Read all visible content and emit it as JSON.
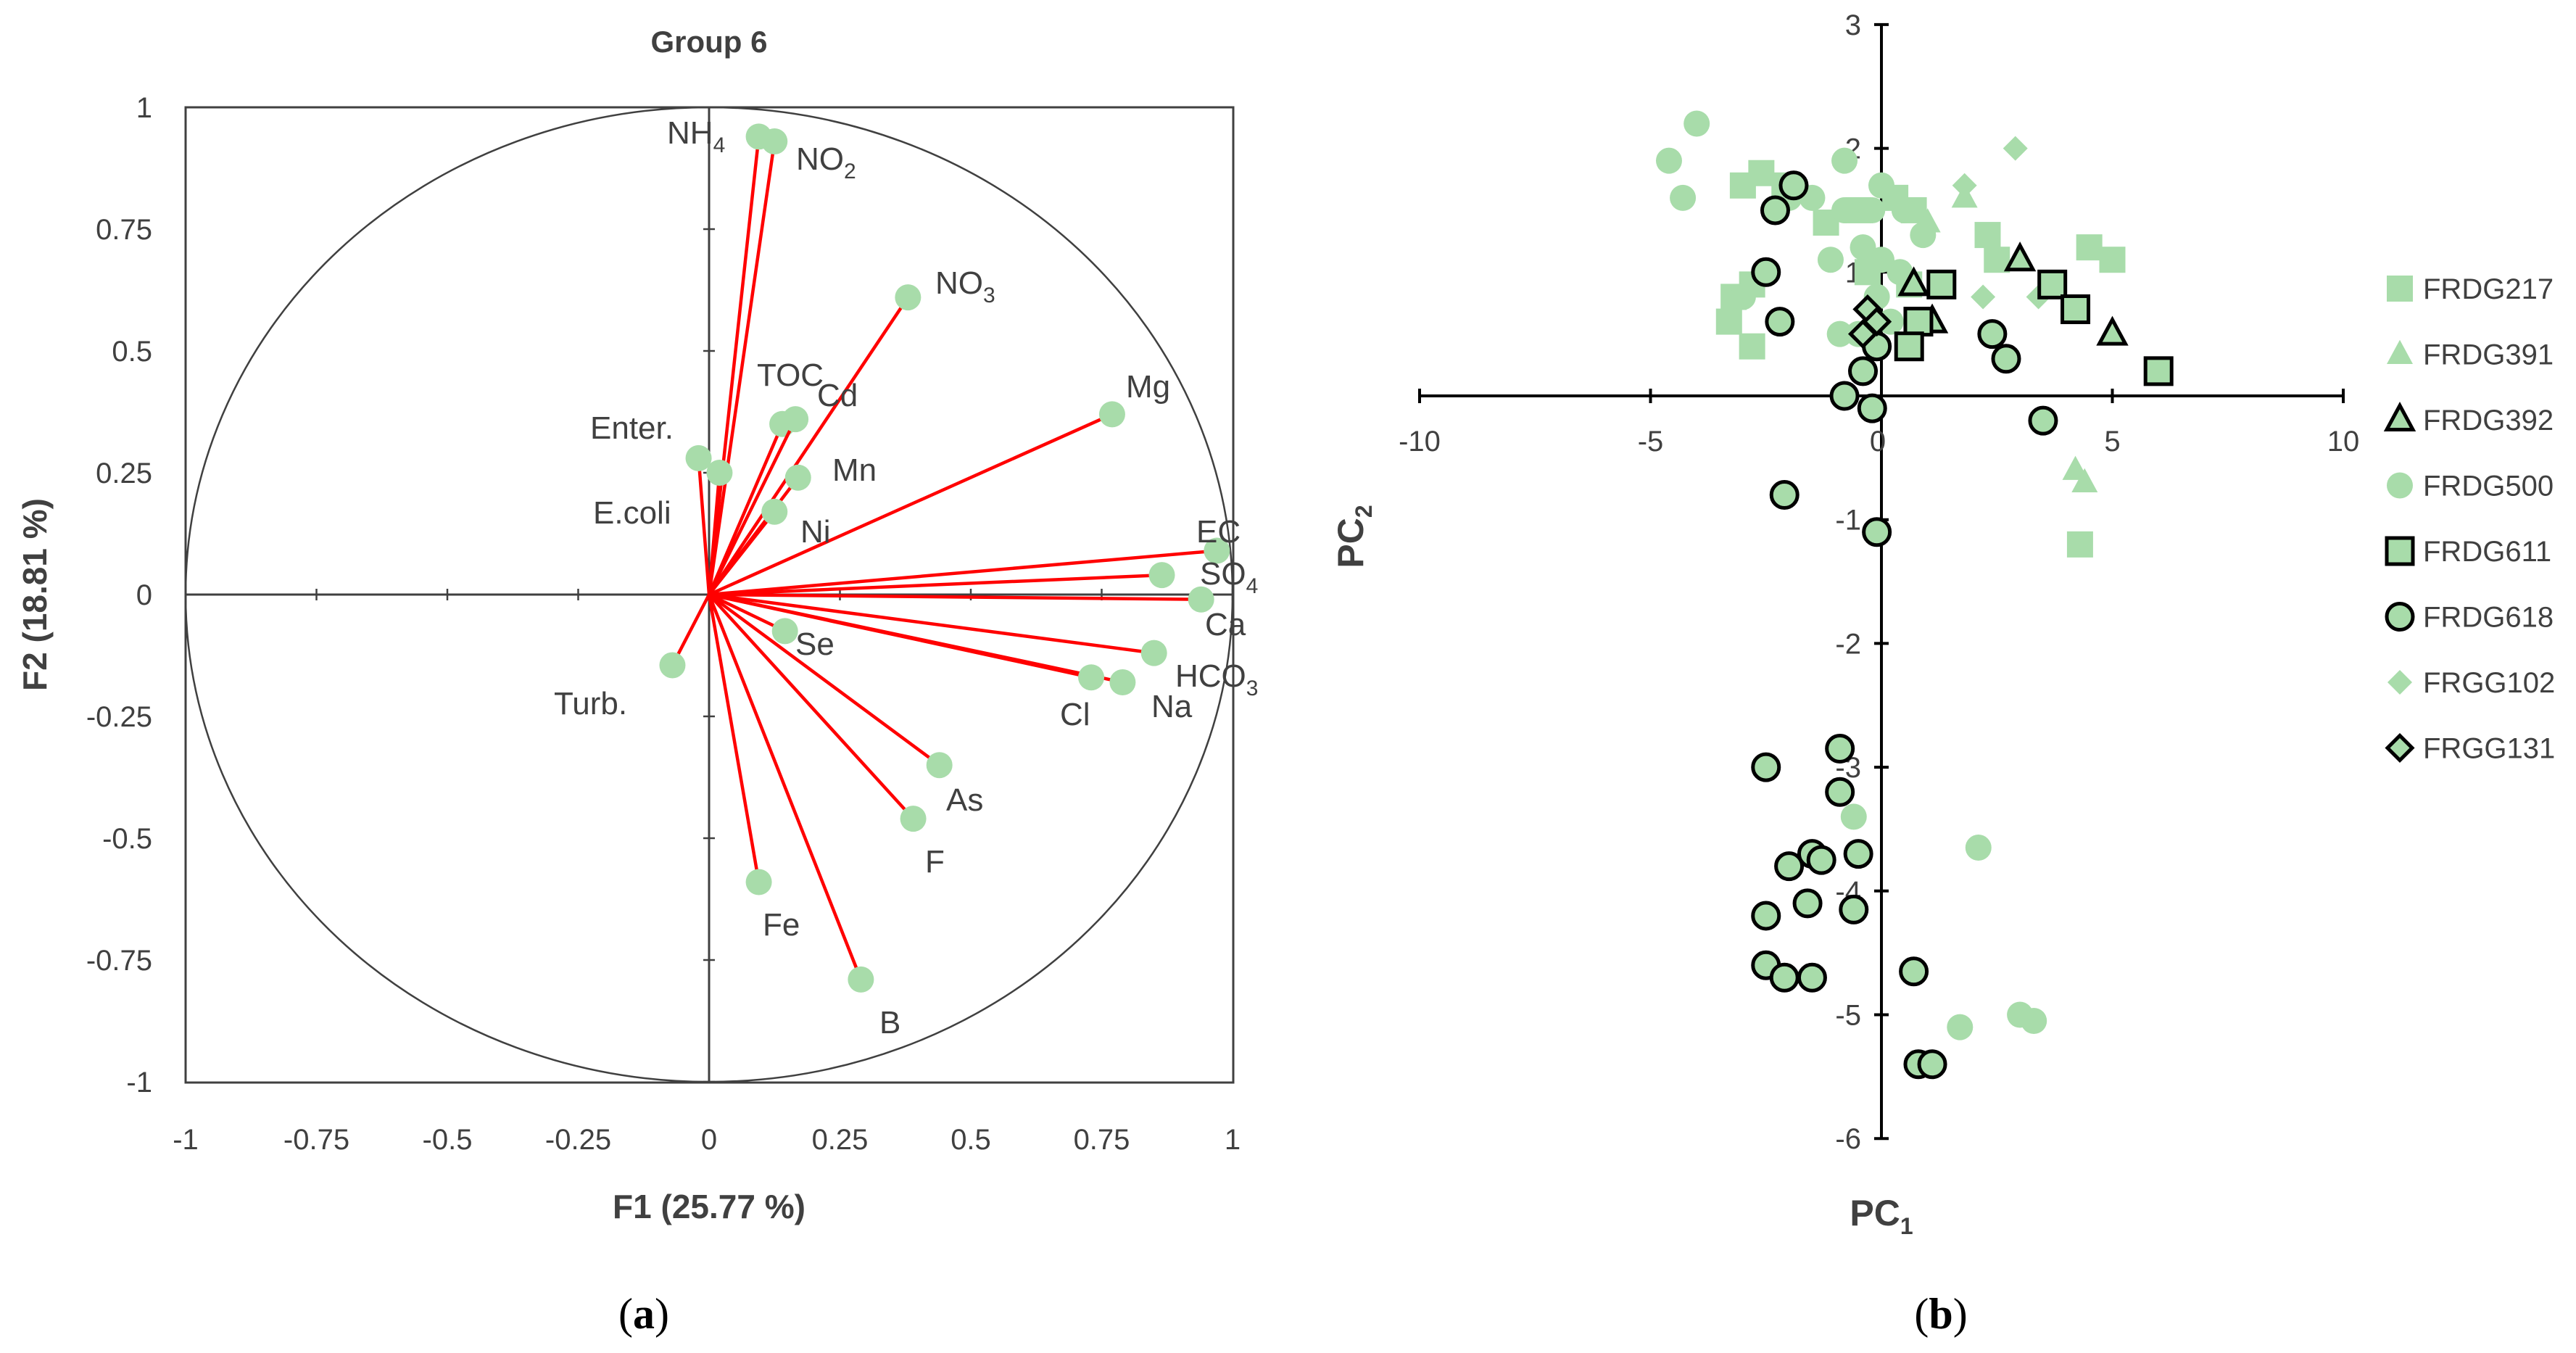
{
  "chart_data": [
    {
      "type": "scatter",
      "subtype": "pca-correlation-circle",
      "title": "Group 6",
      "xlabel": "F1 (25.77 %)",
      "ylabel": "F2 (18.81 %)",
      "xlim": [
        -1,
        1
      ],
      "ylim": [
        -1,
        1
      ],
      "xticks": [
        "-1",
        "-0.75",
        "-0.5",
        "-0.25",
        "0",
        "0.25",
        "0.5",
        "0.75",
        "1"
      ],
      "yticks": [
        "1",
        "0.75",
        "0.5",
        "0.25",
        "0",
        "-0.25",
        "-0.5",
        "-0.75",
        "-1"
      ],
      "colors": {
        "vector": "#ff0000",
        "point": "#a8dcaa",
        "circle": "#404040"
      },
      "variables": [
        {
          "name": "NH4",
          "label": "NH",
          "sub": "4",
          "x": 0.095,
          "y": 0.94
        },
        {
          "name": "NO2",
          "label": "NO",
          "sub": "2",
          "x": 0.125,
          "y": 0.93
        },
        {
          "name": "NO3",
          "label": "NO",
          "sub": "3",
          "x": 0.38,
          "y": 0.61
        },
        {
          "name": "Mg",
          "label": "Mg",
          "sub": "",
          "x": 0.77,
          "y": 0.37
        },
        {
          "name": "TOC",
          "label": "TOC",
          "sub": "",
          "x": 0.14,
          "y": 0.35
        },
        {
          "name": "Cd",
          "label": "Cd",
          "sub": "",
          "x": 0.165,
          "y": 0.36
        },
        {
          "name": "Enter.",
          "label": "Enter.",
          "sub": "",
          "x": -0.02,
          "y": 0.28
        },
        {
          "name": "E.coli",
          "label": "E.coli",
          "sub": "",
          "x": 0.02,
          "y": 0.25
        },
        {
          "name": "Mn",
          "label": "Mn",
          "sub": "",
          "x": 0.17,
          "y": 0.24
        },
        {
          "name": "Ni",
          "label": "Ni",
          "sub": "",
          "x": 0.125,
          "y": 0.17
        },
        {
          "name": "EC",
          "label": "EC",
          "sub": "",
          "x": 0.97,
          "y": 0.09
        },
        {
          "name": "SO4",
          "label": "SO",
          "sub": "4",
          "x": 0.865,
          "y": 0.04
        },
        {
          "name": "Ca",
          "label": "Ca",
          "sub": "",
          "x": 0.94,
          "y": -0.01
        },
        {
          "name": "HCO3",
          "label": "HCO",
          "sub": "3",
          "x": 0.85,
          "y": -0.12
        },
        {
          "name": "Na",
          "label": "Na",
          "sub": "",
          "x": 0.79,
          "y": -0.18
        },
        {
          "name": "Cl",
          "label": "Cl",
          "sub": "",
          "x": 0.73,
          "y": -0.17
        },
        {
          "name": "Se",
          "label": "Se",
          "sub": "",
          "x": 0.145,
          "y": -0.075
        },
        {
          "name": "Turb.",
          "label": "Turb.",
          "sub": "",
          "x": -0.07,
          "y": -0.145
        },
        {
          "name": "As",
          "label": "As",
          "sub": "",
          "x": 0.44,
          "y": -0.35
        },
        {
          "name": "F",
          "label": "F",
          "sub": "",
          "x": 0.39,
          "y": -0.46
        },
        {
          "name": "Fe",
          "label": "Fe",
          "sub": "",
          "x": 0.095,
          "y": -0.59
        },
        {
          "name": "B",
          "label": "B",
          "sub": "",
          "x": 0.29,
          "y": -0.79
        }
      ]
    },
    {
      "type": "scatter",
      "subtype": "pca-scores",
      "xlabel": "PC",
      "xlabel_sub": "1",
      "ylabel": "PC",
      "ylabel_sub": "2",
      "xlim": [
        -10,
        10
      ],
      "ylim": [
        -6,
        3
      ],
      "xticks": [
        -10,
        -5,
        0,
        5,
        10
      ],
      "yticks": [
        3,
        2,
        1,
        -1,
        -2,
        -3,
        -4,
        -5,
        -6
      ],
      "colors": {
        "fill": "#a8dcaa",
        "stroke": "#000000"
      },
      "series": [
        {
          "name": "FRDG217",
          "marker": "square",
          "outlined": false,
          "points": [
            [
              -3,
              1.7
            ],
            [
              -2.6,
              1.8
            ],
            [
              -2.1,
              1.7
            ],
            [
              -3.2,
              0.8
            ],
            [
              -2.8,
              0.9
            ],
            [
              -3.3,
              0.6
            ],
            [
              -2.8,
              0.4
            ],
            [
              -1.2,
              1.4
            ],
            [
              -0.5,
              1.5
            ],
            [
              0.3,
              1.6
            ],
            [
              0.7,
              1.5
            ],
            [
              -0.3,
              1.0
            ],
            [
              0.6,
              0.9
            ],
            [
              2.3,
              1.3
            ],
            [
              2.5,
              1.1
            ],
            [
              4.5,
              1.2
            ],
            [
              5,
              1.1
            ],
            [
              4.3,
              -1.2
            ]
          ]
        },
        {
          "name": "FRDG391",
          "marker": "triangle",
          "outlined": false,
          "points": [
            [
              1,
              1.4
            ],
            [
              1.8,
              1.6
            ],
            [
              4.2,
              -0.6
            ],
            [
              4.4,
              -0.7
            ]
          ]
        },
        {
          "name": "FRDG392",
          "marker": "triangle",
          "outlined": true,
          "points": [
            [
              0.7,
              0.9
            ],
            [
              1.1,
              0.6
            ],
            [
              3,
              1.1
            ],
            [
              5,
              0.5
            ]
          ]
        },
        {
          "name": "FRDG500",
          "marker": "circle",
          "outlined": false,
          "points": [
            [
              -4.6,
              1.9
            ],
            [
              -4,
              2.2
            ],
            [
              -4.3,
              1.6
            ],
            [
              -2,
              1.6
            ],
            [
              -1.5,
              1.6
            ],
            [
              -0.8,
              1.9
            ],
            [
              -0.8,
              1.5
            ],
            [
              -0.2,
              1.5
            ],
            [
              0,
              1.7
            ],
            [
              0.5,
              1.5
            ],
            [
              0.9,
              1.3
            ],
            [
              -1.1,
              1.1
            ],
            [
              -0.4,
              1.2
            ],
            [
              0,
              1.1
            ],
            [
              0.4,
              1.0
            ],
            [
              -0.1,
              0.8
            ],
            [
              -0.5,
              0.5
            ],
            [
              -0.9,
              0.5
            ],
            [
              0.2,
              0.6
            ],
            [
              -2.5,
              1.0
            ],
            [
              -3,
              0.8
            ],
            [
              -0.6,
              -3.4
            ],
            [
              2.1,
              -3.65
            ],
            [
              1.7,
              -5.1
            ],
            [
              3,
              -5.0
            ],
            [
              3.3,
              -5.05
            ]
          ]
        },
        {
          "name": "FRDG611",
          "marker": "square",
          "outlined": true,
          "points": [
            [
              0.8,
              0.6
            ],
            [
              1.3,
              0.9
            ],
            [
              0.6,
              0.4
            ],
            [
              3.7,
              0.9
            ],
            [
              4.2,
              0.7
            ],
            [
              6,
              0.2
            ]
          ]
        },
        {
          "name": "FRDG618",
          "marker": "circle",
          "outlined": true,
          "points": [
            [
              -2.3,
              1.5
            ],
            [
              -1.9,
              1.7
            ],
            [
              -2.5,
              1.0
            ],
            [
              -2.2,
              0.6
            ],
            [
              -0.1,
              0.4
            ],
            [
              2.4,
              0.5
            ],
            [
              2.7,
              0.3
            ],
            [
              -0.4,
              0.2
            ],
            [
              -0.2,
              -0.1
            ],
            [
              -0.8,
              0.0
            ],
            [
              3.5,
              -0.2
            ],
            [
              -2.1,
              -0.8
            ],
            [
              -0.1,
              -1.1
            ],
            [
              -2.5,
              -3.0
            ],
            [
              -0.9,
              -2.85
            ],
            [
              -0.9,
              -3.2
            ],
            [
              -2,
              -3.8
            ],
            [
              -1.5,
              -3.7
            ],
            [
              -1.3,
              -3.75
            ],
            [
              -0.5,
              -3.7
            ],
            [
              -2.5,
              -4.2
            ],
            [
              -1.6,
              -4.1
            ],
            [
              -0.6,
              -4.15
            ],
            [
              -2.5,
              -4.6
            ],
            [
              -2.1,
              -4.7
            ],
            [
              -1.5,
              -4.7
            ],
            [
              0.7,
              -4.65
            ],
            [
              0.8,
              -5.4
            ],
            [
              1.1,
              -5.4
            ]
          ]
        },
        {
          "name": "FRGG102",
          "marker": "diamond",
          "outlined": false,
          "points": [
            [
              1.8,
              1.7
            ],
            [
              2.9,
              2.0
            ],
            [
              2.2,
              0.8
            ],
            [
              3.4,
              0.8
            ]
          ]
        },
        {
          "name": "FRGG131",
          "marker": "diamond",
          "outlined": true,
          "points": [
            [
              -0.3,
              0.7
            ],
            [
              -0.4,
              0.5
            ],
            [
              -0.1,
              0.6
            ]
          ]
        }
      ]
    }
  ],
  "captions": {
    "a_open": "(",
    "a_letter": "a",
    "a_close": ")",
    "b_open": "(",
    "b_letter": "b",
    "b_close": ")"
  }
}
